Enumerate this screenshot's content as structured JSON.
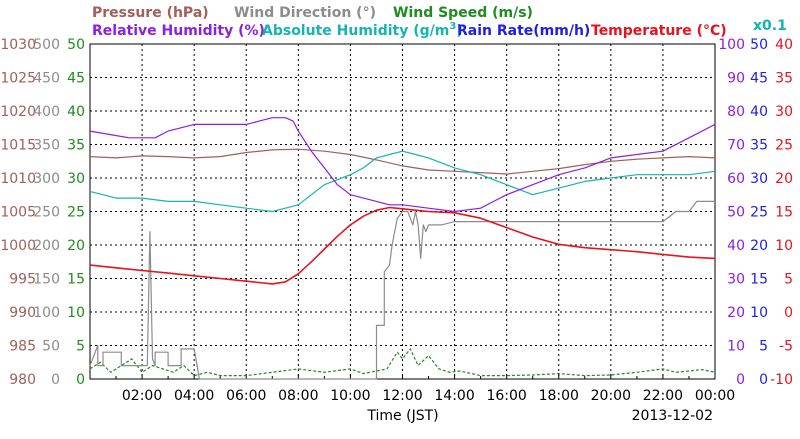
{
  "chart_data": {
    "type": "line",
    "date_label": "2013-12-02",
    "xlabel": "Time (JST)",
    "x_ticks": [
      "02:00",
      "04:00",
      "06:00",
      "08:00",
      "10:00",
      "12:00",
      "14:00",
      "16:00",
      "18:00",
      "20:00",
      "22:00",
      "00:00"
    ],
    "grid": true,
    "axes": {
      "pressure": {
        "label": "Pressure (hPa)",
        "unit": "hPa",
        "color": "#A0605C",
        "range": [
          980,
          1030
        ],
        "ticks": [
          "980",
          "985",
          "990",
          "995",
          "1000",
          "1005",
          "1010",
          "1015",
          "1020",
          "1025",
          "1030"
        ]
      },
      "wind_direction": {
        "label": "Wind Direction (°)",
        "unit": "°",
        "color": "#8C8C8C",
        "range": [
          0,
          500
        ],
        "ticks": [
          "0",
          "50",
          "100",
          "150",
          "200",
          "250",
          "300",
          "350",
          "400",
          "450",
          "500"
        ]
      },
      "wind_speed": {
        "label": "Wind Speed (m/s)",
        "unit": "m/s",
        "color": "#1E8C1E",
        "range": [
          0,
          50
        ],
        "ticks": [
          "0",
          "5",
          "10",
          "15",
          "20",
          "25",
          "30",
          "35",
          "40",
          "45",
          "50"
        ]
      },
      "relative_humidity": {
        "label": "Relative Humidity (%)",
        "unit": "%",
        "color": "#8C1EE6",
        "range": [
          0,
          100
        ],
        "ticks": [
          "0",
          "10",
          "20",
          "30",
          "40",
          "50",
          "60",
          "70",
          "80",
          "90",
          "100"
        ]
      },
      "absolute_humidity": {
        "label": "Absolute Humidity (g/m³)",
        "unit": "g/m³ ×0.1",
        "color": "#14B4B4",
        "scale_note": "x0.1",
        "range": [
          0,
          100
        ]
      },
      "rain_rate": {
        "label": "Rain Rate(mm/h)",
        "unit": "mm/h",
        "color": "#1E1EE6",
        "range": [
          0,
          50
        ],
        "ticks": [
          "0",
          "5",
          "10",
          "15",
          "20",
          "25",
          "30",
          "35",
          "40",
          "45",
          "50"
        ]
      },
      "temperature": {
        "label": "Temperature (°C)",
        "unit": "°C",
        "color": "#E6141E",
        "range": [
          -10,
          40
        ],
        "ticks": [
          "-10",
          "-5",
          "0",
          "5",
          "10",
          "15",
          "20",
          "25",
          "30",
          "35",
          "40"
        ]
      }
    },
    "header": {
      "pressure_label": "Pressure (hPa)",
      "wind_direction_label": "Wind Direction (°)",
      "wind_speed_label": "Wind Speed (m/s)",
      "relative_humidity_label": "Relative Humidity (%)",
      "absolute_humidity_label": "Absolute Humidity (g/m",
      "absolute_humidity_sup": "3",
      "absolute_humidity_close": ")",
      "rain_rate_label": "Rain Rate(mm/h)",
      "temperature_label": "Temperature (°C)",
      "scale_note": "x0.1"
    },
    "series": [
      {
        "name": "Relative Humidity",
        "axis": "relative_humidity",
        "x": [
          0,
          1.5,
          2.5,
          3.0,
          4.0,
          5.0,
          6.0,
          6.5,
          7.0,
          7.5,
          7.8,
          8.0,
          8.5,
          9.0,
          9.5,
          10.0,
          11.0,
          11.5,
          12.0,
          13.0,
          14.0,
          15.0,
          15.5,
          16.0,
          17.0,
          18.0,
          18.5,
          19.0,
          20.0,
          21.0,
          22.0,
          23.0,
          24.0
        ],
        "y": [
          74,
          72,
          72,
          74,
          76,
          76,
          76,
          77,
          78,
          78,
          77,
          74,
          68,
          63,
          58,
          55,
          53,
          52,
          52,
          51,
          50,
          51,
          53,
          55,
          58,
          61,
          62,
          63,
          66,
          67,
          68,
          72,
          76
        ]
      },
      {
        "name": "Absolute Humidity",
        "axis": "absolute_humidity",
        "x": [
          0,
          1.0,
          2.0,
          3.0,
          4.0,
          5.0,
          6.0,
          7.0,
          7.5,
          8.0,
          8.5,
          9.0,
          10.0,
          10.5,
          11.0,
          11.5,
          12.0,
          12.5,
          13.0,
          14.0,
          15.0,
          16.0,
          17.0,
          18.0,
          19.0,
          20.0,
          21.0,
          22.0,
          23.0,
          24.0
        ],
        "y": [
          56,
          54,
          54,
          53,
          53,
          52,
          51,
          50,
          51,
          52,
          55,
          58,
          61,
          63,
          66,
          67,
          68,
          67,
          66,
          63,
          61,
          58,
          55,
          57,
          59,
          60,
          61,
          61,
          61,
          62
        ]
      },
      {
        "name": "Pressure",
        "axis": "pressure",
        "x": [
          0,
          1,
          2,
          3,
          4,
          5,
          6,
          7,
          8,
          9,
          10,
          11,
          12,
          13,
          14,
          15,
          16,
          17,
          18,
          19,
          20,
          21,
          22,
          23,
          24
        ],
        "y": [
          1013.2,
          1013.0,
          1013.3,
          1013.2,
          1013.0,
          1013.2,
          1013.8,
          1014.2,
          1014.3,
          1014.0,
          1013.5,
          1012.7,
          1011.8,
          1011.2,
          1011.0,
          1010.8,
          1010.6,
          1011.0,
          1011.4,
          1012.0,
          1012.5,
          1012.8,
          1013.0,
          1013.2,
          1013.0
        ]
      },
      {
        "name": "Temperature",
        "axis": "temperature",
        "x": [
          0,
          1,
          2,
          3,
          4,
          5,
          6,
          7,
          7.5,
          8,
          8.5,
          9,
          9.5,
          10,
          10.5,
          11,
          11.5,
          12,
          12.5,
          13,
          14,
          15,
          16,
          17,
          18,
          19,
          20,
          21,
          22,
          23,
          24
        ],
        "y": [
          7.0,
          6.6,
          6.2,
          5.8,
          5.4,
          5.0,
          4.6,
          4.2,
          4.5,
          5.7,
          7.5,
          9.4,
          11.3,
          13.0,
          14.3,
          15.2,
          15.6,
          15.4,
          15.2,
          15.0,
          14.8,
          14.0,
          12.6,
          11.2,
          10.1,
          9.6,
          9.3,
          9.0,
          8.6,
          8.2,
          8.0
        ]
      },
      {
        "name": "Wind Direction",
        "axis": "wind_direction",
        "x": [
          0,
          0.3,
          0.3,
          0.5,
          0.5,
          1.2,
          1.2,
          2.2,
          2.3,
          2.4,
          2.5,
          2.5,
          3.0,
          3.0,
          3.5,
          3.5,
          4.0,
          4.2,
          10.5,
          11.0,
          11.0,
          11.3,
          11.3,
          11.5,
          11.6,
          11.8,
          12.0,
          12.2,
          12.4,
          12.5,
          12.6,
          12.7,
          12.8,
          12.9,
          13.0,
          13.2,
          13.5,
          14.0,
          16.0,
          18.0,
          20.0,
          22.0,
          22.5,
          23.0,
          23.3,
          24.0
        ],
        "y": [
          20,
          50,
          20,
          20,
          40,
          40,
          20,
          20,
          220,
          30,
          20,
          40,
          40,
          20,
          20,
          45,
          45,
          0,
          0,
          0,
          80,
          80,
          160,
          170,
          200,
          240,
          250,
          250,
          230,
          250,
          230,
          180,
          230,
          220,
          230,
          230,
          230,
          235,
          235,
          235,
          235,
          235,
          250,
          250,
          265,
          265
        ]
      },
      {
        "name": "Wind Speed",
        "axis": "wind_speed",
        "x": [
          0,
          0.4,
          0.8,
          1.2,
          1.6,
          2.0,
          2.4,
          2.8,
          3.2,
          3.6,
          4.0,
          4.5,
          5.0,
          6.0,
          7.0,
          8.0,
          9.0,
          10.0,
          10.5,
          11.0,
          11.4,
          11.8,
          12.0,
          12.3,
          12.6,
          13.0,
          13.4,
          13.8,
          14.2,
          15.0,
          16.0,
          17.0,
          18.0,
          19.0,
          20.0,
          21.0,
          22.0,
          22.5,
          23.0,
          23.5,
          24.0
        ],
        "y": [
          1.5,
          2.5,
          1.0,
          2.0,
          3.0,
          1.0,
          2.0,
          1.5,
          1.0,
          2.0,
          0.5,
          1.0,
          0.5,
          0.5,
          1.0,
          1.5,
          1.0,
          1.5,
          0.8,
          1.2,
          1.5,
          4.0,
          3.0,
          4.5,
          2.0,
          3.5,
          1.5,
          1.0,
          1.2,
          0.5,
          0.5,
          0.6,
          0.8,
          0.5,
          0.6,
          1.0,
          1.5,
          1.0,
          1.2,
          1.4,
          1.0
        ]
      }
    ]
  }
}
